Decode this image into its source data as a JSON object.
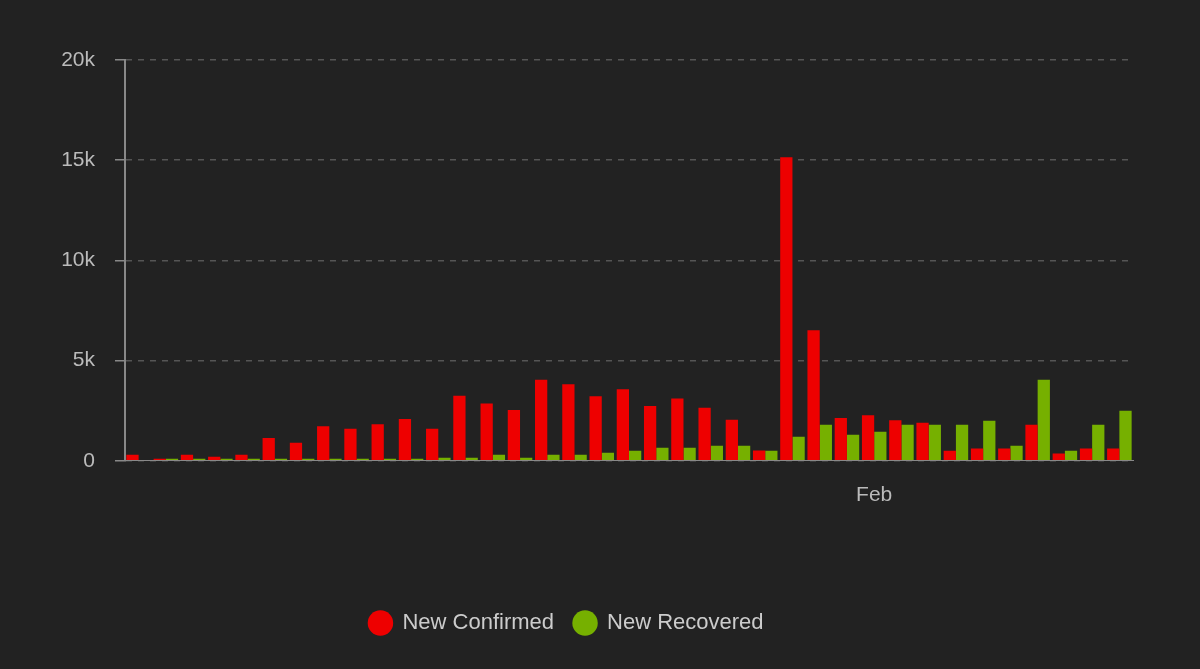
{
  "chart_data": {
    "type": "bar",
    "categories": [
      null,
      null,
      null,
      null,
      null,
      null,
      null,
      null,
      null,
      null,
      null,
      null,
      null,
      null,
      null,
      null,
      null,
      null,
      null,
      null,
      null,
      null,
      null,
      null,
      null,
      null,
      null,
      "Feb",
      null,
      null,
      null,
      null,
      null,
      null,
      null,
      null,
      null
    ],
    "series": [
      {
        "name": "New Confirmed",
        "color": "#ee0000",
        "values": [
          300,
          100,
          300,
          200,
          300,
          1140,
          900,
          1720,
          1600,
          1830,
          2080,
          1600,
          3250,
          2860,
          2530,
          4050,
          3820,
          3220,
          3570,
          2740,
          3110,
          2650,
          2050,
          510,
          15150,
          6520,
          2140,
          2270,
          2020,
          1900,
          500,
          610,
          610,
          1800,
          360,
          610,
          610
        ]
      },
      {
        "name": "New Recovered",
        "color": "#76b000",
        "values": [
          0,
          100,
          100,
          100,
          100,
          100,
          100,
          100,
          100,
          100,
          100,
          150,
          150,
          300,
          150,
          300,
          300,
          400,
          500,
          650,
          650,
          750,
          750,
          500,
          1200,
          1800,
          1300,
          1450,
          1800,
          1800,
          1800,
          2000,
          750,
          4050,
          500,
          1800,
          2500
        ]
      }
    ],
    "ylim": [
      0,
      20000
    ],
    "yticks": [
      0,
      {
        "value": 5000,
        "label": "5k"
      },
      {
        "value": 10000,
        "label": "10k"
      },
      {
        "value": 15000,
        "label": "15k"
      },
      {
        "value": 20000,
        "label": "20k"
      }
    ],
    "grid": "y",
    "legend": "bottom"
  }
}
